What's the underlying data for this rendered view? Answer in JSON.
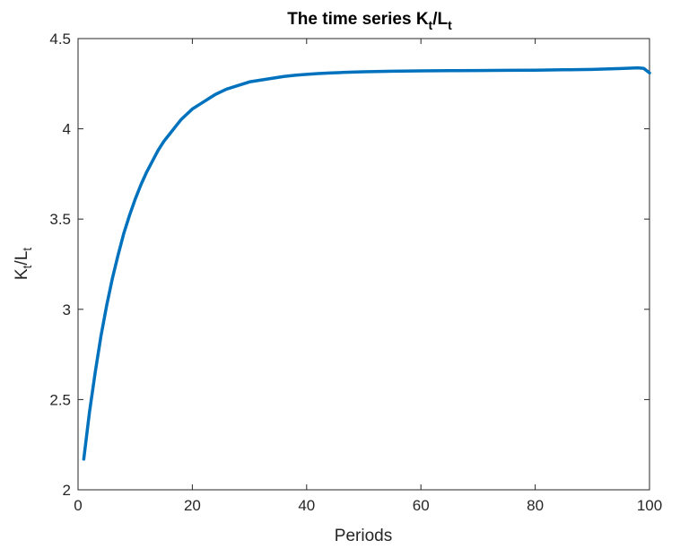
{
  "chart_data": {
    "type": "line",
    "title": {
      "main": "The time series K",
      "sub1": "t",
      "slash": "/L",
      "sub2": "t"
    },
    "xlabel": "Periods",
    "ylabel": {
      "main": "K",
      "sub1": "t",
      "slash": "/L",
      "sub2": "t"
    },
    "xlim": [
      0,
      100
    ],
    "ylim": [
      2,
      4.5
    ],
    "xticks": [
      0,
      20,
      40,
      60,
      80,
      100
    ],
    "yticks": [
      2,
      2.5,
      3,
      3.5,
      4,
      4.5
    ],
    "xtick_labels": [
      "0",
      "20",
      "40",
      "60",
      "80",
      "100"
    ],
    "ytick_labels": [
      "2",
      "2.5",
      "3",
      "3.5",
      "4",
      "4.5"
    ],
    "grid": false,
    "series": [
      {
        "color": "#0072BD",
        "x": [
          1,
          2,
          3,
          4,
          5,
          6,
          7,
          8,
          9,
          10,
          11,
          12,
          13,
          14,
          15,
          16,
          17,
          18,
          19,
          20,
          21,
          22,
          23,
          24,
          25,
          26,
          27,
          28,
          29,
          30,
          32,
          34,
          36,
          38,
          40,
          42,
          44,
          46,
          48,
          50,
          55,
          60,
          65,
          70,
          75,
          80,
          85,
          90,
          95,
          98,
          99,
          100
        ],
        "y": [
          2.17,
          2.43,
          2.65,
          2.85,
          3.02,
          3.17,
          3.3,
          3.42,
          3.52,
          3.61,
          3.69,
          3.76,
          3.82,
          3.88,
          3.93,
          3.97,
          4.01,
          4.05,
          4.08,
          4.11,
          4.13,
          4.15,
          4.17,
          4.19,
          4.205,
          4.22,
          4.23,
          4.24,
          4.25,
          4.26,
          4.27,
          4.28,
          4.29,
          4.297,
          4.302,
          4.306,
          4.309,
          4.312,
          4.314,
          4.316,
          4.319,
          4.321,
          4.322,
          4.323,
          4.324,
          4.325,
          4.327,
          4.329,
          4.334,
          4.338,
          4.335,
          4.31
        ]
      }
    ]
  }
}
